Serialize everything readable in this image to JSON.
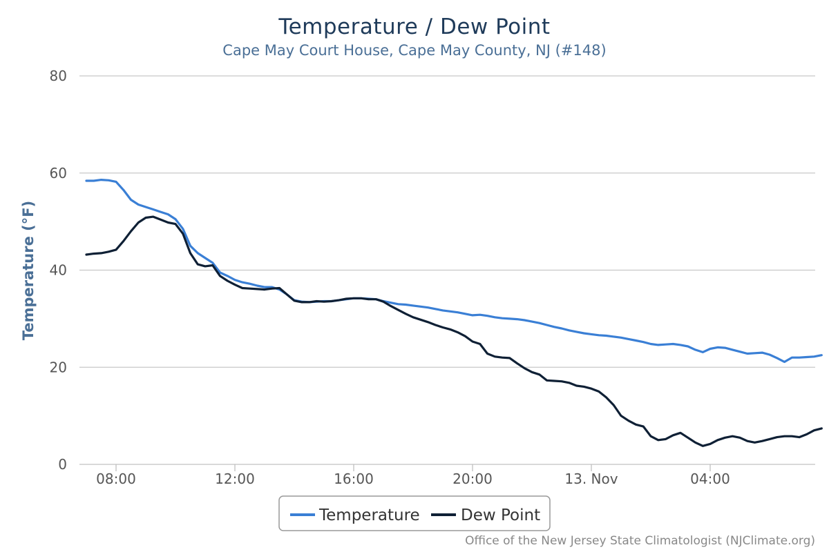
{
  "chart_data": {
    "type": "line",
    "title": "Temperature / Dew Point",
    "subtitle": "Cape May Court House, Cape May County, NJ (#148)",
    "ylabel": "Temperature (°F)",
    "xlabel": "",
    "ylim": [
      0,
      80
    ],
    "y_ticks": [
      0,
      20,
      40,
      60,
      80
    ],
    "x_axis_unit": "hours from 00:00 on 12 Nov",
    "xlim": [
      6.8,
      31.0
    ],
    "x_ticks": [
      {
        "x": 8,
        "label": "08:00"
      },
      {
        "x": 12,
        "label": "12:00"
      },
      {
        "x": 16,
        "label": "16:00"
      },
      {
        "x": 20,
        "label": "20:00"
      },
      {
        "x": 24,
        "label": "13. Nov"
      },
      {
        "x": 28,
        "label": "04:00"
      }
    ],
    "grid": true,
    "legend_position": "bottom-center",
    "series": [
      {
        "name": "Temperature",
        "color": "#3a7fd5",
        "points": [
          [
            7.0,
            58.4
          ],
          [
            7.25,
            58.4
          ],
          [
            7.5,
            58.6
          ],
          [
            7.75,
            58.5
          ],
          [
            8.0,
            58.2
          ],
          [
            8.25,
            56.5
          ],
          [
            8.5,
            54.5
          ],
          [
            8.75,
            53.5
          ],
          [
            9.0,
            53.0
          ],
          [
            9.25,
            52.5
          ],
          [
            9.5,
            52.0
          ],
          [
            9.75,
            51.5
          ],
          [
            10.0,
            50.5
          ],
          [
            10.25,
            48.5
          ],
          [
            10.5,
            45.0
          ],
          [
            10.75,
            43.5
          ],
          [
            11.0,
            42.5
          ],
          [
            11.25,
            41.5
          ],
          [
            11.5,
            39.5
          ],
          [
            11.75,
            38.8
          ],
          [
            12.0,
            38.0
          ],
          [
            12.25,
            37.5
          ],
          [
            12.5,
            37.2
          ],
          [
            12.75,
            36.8
          ],
          [
            13.0,
            36.5
          ],
          [
            13.25,
            36.5
          ],
          [
            13.5,
            36.0
          ],
          [
            13.75,
            35.0
          ],
          [
            14.0,
            33.8
          ],
          [
            14.25,
            33.5
          ],
          [
            14.5,
            33.4
          ],
          [
            14.75,
            33.5
          ],
          [
            15.0,
            33.6
          ],
          [
            15.25,
            33.6
          ],
          [
            15.5,
            33.8
          ],
          [
            15.75,
            34.0
          ],
          [
            16.0,
            34.2
          ],
          [
            16.25,
            34.2
          ],
          [
            16.5,
            34.1
          ],
          [
            16.75,
            34.0
          ],
          [
            17.0,
            33.6
          ],
          [
            17.25,
            33.3
          ],
          [
            17.5,
            33.0
          ],
          [
            17.75,
            32.9
          ],
          [
            18.0,
            32.7
          ],
          [
            18.25,
            32.5
          ],
          [
            18.5,
            32.3
          ],
          [
            18.75,
            32.0
          ],
          [
            19.0,
            31.7
          ],
          [
            19.25,
            31.5
          ],
          [
            19.5,
            31.3
          ],
          [
            19.75,
            31.0
          ],
          [
            20.0,
            30.7
          ],
          [
            20.25,
            30.8
          ],
          [
            20.5,
            30.6
          ],
          [
            20.75,
            30.3
          ],
          [
            21.0,
            30.1
          ],
          [
            21.25,
            30.0
          ],
          [
            21.5,
            29.9
          ],
          [
            21.75,
            29.7
          ],
          [
            22.0,
            29.4
          ],
          [
            22.25,
            29.1
          ],
          [
            22.5,
            28.7
          ],
          [
            22.75,
            28.3
          ],
          [
            23.0,
            28.0
          ],
          [
            23.25,
            27.6
          ],
          [
            23.5,
            27.3
          ],
          [
            23.75,
            27.0
          ],
          [
            24.0,
            26.8
          ],
          [
            24.25,
            26.6
          ],
          [
            24.5,
            26.5
          ],
          [
            24.75,
            26.3
          ],
          [
            25.0,
            26.1
          ],
          [
            25.25,
            25.8
          ],
          [
            25.5,
            25.5
          ],
          [
            25.75,
            25.2
          ],
          [
            26.0,
            24.8
          ],
          [
            26.25,
            24.6
          ],
          [
            26.5,
            24.7
          ],
          [
            26.75,
            24.8
          ],
          [
            27.0,
            24.6
          ],
          [
            27.25,
            24.3
          ],
          [
            27.5,
            23.6
          ],
          [
            27.75,
            23.1
          ],
          [
            28.0,
            23.8
          ],
          [
            28.25,
            24.1
          ],
          [
            28.5,
            24.0
          ],
          [
            28.75,
            23.6
          ],
          [
            29.0,
            23.2
          ],
          [
            29.25,
            22.8
          ],
          [
            29.5,
            22.9
          ],
          [
            29.75,
            23.0
          ],
          [
            30.0,
            22.6
          ],
          [
            30.25,
            21.9
          ],
          [
            30.5,
            21.1
          ],
          [
            30.75,
            22.0
          ],
          [
            31.0,
            22.0
          ],
          [
            31.25,
            22.1
          ],
          [
            31.5,
            22.2
          ],
          [
            31.75,
            22.5
          ]
        ]
      },
      {
        "name": "Dew Point",
        "color": "#0f2035",
        "points": [
          [
            7.0,
            43.2
          ],
          [
            7.25,
            43.4
          ],
          [
            7.5,
            43.5
          ],
          [
            7.75,
            43.8
          ],
          [
            8.0,
            44.2
          ],
          [
            8.25,
            46.0
          ],
          [
            8.5,
            48.0
          ],
          [
            8.75,
            49.8
          ],
          [
            9.0,
            50.8
          ],
          [
            9.25,
            51.0
          ],
          [
            9.5,
            50.4
          ],
          [
            9.75,
            49.8
          ],
          [
            10.0,
            49.5
          ],
          [
            10.25,
            47.5
          ],
          [
            10.5,
            43.5
          ],
          [
            10.75,
            41.2
          ],
          [
            11.0,
            40.8
          ],
          [
            11.25,
            41.0
          ],
          [
            11.5,
            38.8
          ],
          [
            11.75,
            37.8
          ],
          [
            12.0,
            37.0
          ],
          [
            12.25,
            36.3
          ],
          [
            12.5,
            36.2
          ],
          [
            12.75,
            36.1
          ],
          [
            13.0,
            36.0
          ],
          [
            13.25,
            36.2
          ],
          [
            13.5,
            36.3
          ],
          [
            13.75,
            35.0
          ],
          [
            14.0,
            33.7
          ],
          [
            14.25,
            33.4
          ],
          [
            14.5,
            33.4
          ],
          [
            14.75,
            33.6
          ],
          [
            15.0,
            33.5
          ],
          [
            15.25,
            33.6
          ],
          [
            15.5,
            33.8
          ],
          [
            15.75,
            34.1
          ],
          [
            16.0,
            34.2
          ],
          [
            16.25,
            34.2
          ],
          [
            16.5,
            34.0
          ],
          [
            16.75,
            34.0
          ],
          [
            17.0,
            33.5
          ],
          [
            17.25,
            32.6
          ],
          [
            17.5,
            31.8
          ],
          [
            17.75,
            31.0
          ],
          [
            18.0,
            30.3
          ],
          [
            18.25,
            29.8
          ],
          [
            18.5,
            29.3
          ],
          [
            18.75,
            28.7
          ],
          [
            19.0,
            28.2
          ],
          [
            19.25,
            27.8
          ],
          [
            19.5,
            27.2
          ],
          [
            19.75,
            26.4
          ],
          [
            20.0,
            25.3
          ],
          [
            20.25,
            24.8
          ],
          [
            20.5,
            22.8
          ],
          [
            20.75,
            22.2
          ],
          [
            21.0,
            22.0
          ],
          [
            21.25,
            21.9
          ],
          [
            21.5,
            20.8
          ],
          [
            21.75,
            19.8
          ],
          [
            22.0,
            19.0
          ],
          [
            22.25,
            18.5
          ],
          [
            22.5,
            17.3
          ],
          [
            22.75,
            17.2
          ],
          [
            23.0,
            17.1
          ],
          [
            23.25,
            16.8
          ],
          [
            23.5,
            16.2
          ],
          [
            23.75,
            16.0
          ],
          [
            24.0,
            15.6
          ],
          [
            24.25,
            15.0
          ],
          [
            24.5,
            13.8
          ],
          [
            24.75,
            12.2
          ],
          [
            25.0,
            10.0
          ],
          [
            25.25,
            9.0
          ],
          [
            25.5,
            8.2
          ],
          [
            25.75,
            7.8
          ],
          [
            26.0,
            5.8
          ],
          [
            26.25,
            5.0
          ],
          [
            26.5,
            5.2
          ],
          [
            26.75,
            6.0
          ],
          [
            27.0,
            6.5
          ],
          [
            27.25,
            5.5
          ],
          [
            27.5,
            4.5
          ],
          [
            27.75,
            3.8
          ],
          [
            28.0,
            4.2
          ],
          [
            28.25,
            5.0
          ],
          [
            28.5,
            5.5
          ],
          [
            28.75,
            5.8
          ],
          [
            29.0,
            5.5
          ],
          [
            29.25,
            4.8
          ],
          [
            29.5,
            4.5
          ],
          [
            29.75,
            4.8
          ],
          [
            30.0,
            5.2
          ],
          [
            30.25,
            5.6
          ],
          [
            30.5,
            5.8
          ],
          [
            30.75,
            5.8
          ],
          [
            31.0,
            5.6
          ],
          [
            31.25,
            6.2
          ],
          [
            31.5,
            7.0
          ],
          [
            31.75,
            7.4
          ]
        ]
      }
    ],
    "credit": "Office of the New Jersey State Climatologist (NJClimate.org)"
  }
}
